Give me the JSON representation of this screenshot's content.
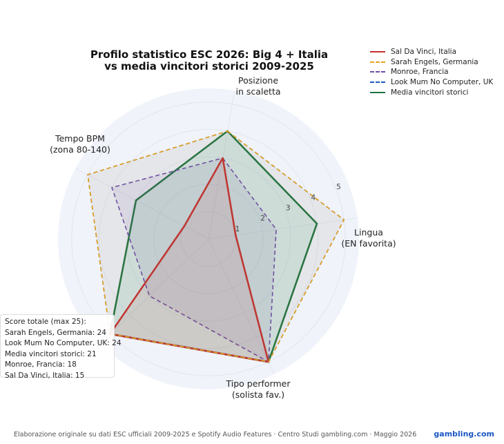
{
  "chart_data": {
    "type": "radar",
    "title_lines": [
      "Profilo statistico ESC 2026: Big 4 + Italia",
      "vs media vincitori storici 2009-2025"
    ],
    "axes": [
      {
        "key": "posizione",
        "lines": [
          "Posizione",
          "in scaletta"
        ]
      },
      {
        "key": "lingua",
        "lines": [
          "Lingua",
          "(EN favorita)"
        ]
      },
      {
        "key": "tipo",
        "lines": [
          "Tipo performer",
          "(solista fav.)"
        ]
      },
      {
        "key": "energia",
        "lines": [
          "",
          ""
        ]
      },
      {
        "key": "tempo",
        "lines": [
          "Tempo BPM",
          "(zona 80-140)"
        ]
      }
    ],
    "ticks": [
      "1",
      "2",
      "3",
      "4",
      "5"
    ],
    "rmax": 5.5,
    "series": [
      {
        "name": "Sal Da Vinci, Italia",
        "values": [
          3,
          1,
          5,
          5,
          1
        ],
        "color": "#c62f2f",
        "dash": "solid",
        "fill": "rgba(198,47,47,0.10)"
      },
      {
        "name": "Sarah Engels, Germania",
        "values": [
          4,
          5,
          5,
          5,
          5
        ],
        "color": "#e8a317",
        "dash": "dashed",
        "fill": "rgba(232,163,23,0.06)"
      },
      {
        "name": "Monroe, Francia",
        "values": [
          3,
          2.5,
          5,
          3,
          4
        ],
        "color": "#6b4ca8",
        "dash": "dashed",
        "fill": "rgba(107,76,168,0.10)"
      },
      {
        "name": "Look Mum No Computer, UK",
        "values": [
          4,
          5,
          5,
          5,
          5
        ],
        "color": "#1f56c6",
        "dash": "dashed",
        "fill": "rgba(31,86,198,0.05)"
      },
      {
        "name": "Media vincitori storici",
        "values": [
          4,
          4,
          5,
          5,
          3
        ],
        "color": "#1e7440",
        "dash": "solid",
        "fill": "rgba(50,170,120,0.14)"
      }
    ],
    "score_box": {
      "title": "Score totale (max 25):",
      "rows": [
        "Sarah Engels, Germania: 24",
        "Look Mum No Computer, UK: 24",
        "Media vincitori storici: 21",
        "Monroe, Francia: 18",
        "Sal Da Vinci, Italia: 15"
      ]
    },
    "legend_position": "top-right",
    "grid": true,
    "background": "#f0f3fa"
  },
  "footer": {
    "text": "Elaborazione originale su dati ESC ufficiali 2009-2025 e Spotify Audio Features  ·  Centro Studi gambling.com  ·  Maggio 2026",
    "brand": "gambling.com"
  }
}
